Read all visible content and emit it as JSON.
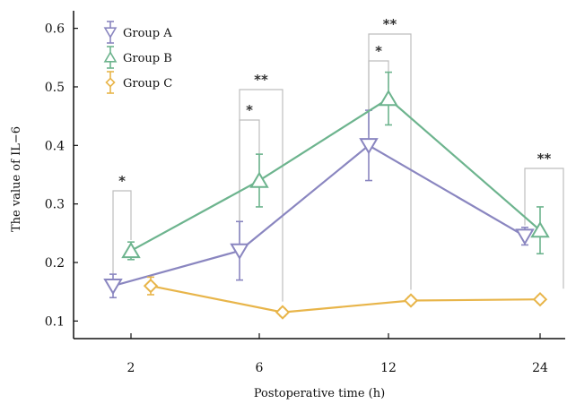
{
  "chart_data": {
    "type": "line",
    "title": "",
    "xlabel": "Postoperative time (h)",
    "ylabel": "The value of IL−6",
    "categories": [
      "2",
      "6",
      "12",
      "24"
    ],
    "ylim": [
      0.07,
      0.63
    ],
    "yticks": [
      "0.1",
      "0.2",
      "0.3",
      "0.4",
      "0.5",
      "0.6"
    ],
    "legend_position": "top-left",
    "series": [
      {
        "name": "Group A",
        "marker": "triangle-down",
        "color": "#8a86c0",
        "values": [
          0.16,
          0.22,
          0.4,
          0.245
        ],
        "errors": [
          0.02,
          0.05,
          0.06,
          0.015
        ]
      },
      {
        "name": "Group B",
        "marker": "triangle-up",
        "color": "#6db48e",
        "values": [
          0.22,
          0.34,
          0.48,
          0.255
        ],
        "errors": [
          0.015,
          0.045,
          0.045,
          0.04
        ]
      },
      {
        "name": "Group C",
        "marker": "diamond",
        "color": "#e8b54a",
        "values": [
          0.16,
          0.115,
          0.135,
          0.137
        ],
        "errors": [
          0.015,
          0.006,
          0.006,
          0.006
        ]
      }
    ],
    "significance": [
      {
        "category": "2",
        "between": [
          "Group A",
          "Group B"
        ],
        "label": "*"
      },
      {
        "category": "6",
        "between": [
          "Group A",
          "Group B"
        ],
        "label": "*"
      },
      {
        "category": "6",
        "between": [
          "Group A",
          "Group C"
        ],
        "label": "**"
      },
      {
        "category": "12",
        "between": [
          "Group A",
          "Group B"
        ],
        "label": "*"
      },
      {
        "category": "12",
        "between": [
          "Group A",
          "Group C"
        ],
        "label": "**"
      },
      {
        "category": "24",
        "between": [
          "Group A",
          "Group C"
        ],
        "label": "**"
      }
    ]
  }
}
